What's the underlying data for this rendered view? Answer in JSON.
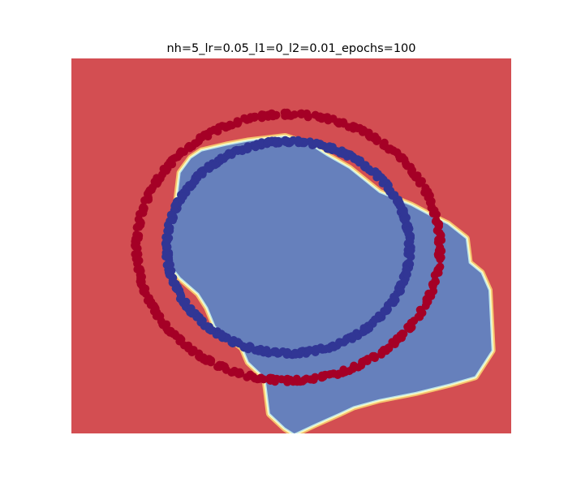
{
  "chart_data": {
    "type": "scatter",
    "title": "nh=5_lr=0.05_l1=0_l2=0.01_epochs=100",
    "xlabel": "",
    "ylabel": "",
    "xlim": [
      -1.45,
      1.45
    ],
    "ylim": [
      -1.31,
      1.31
    ],
    "axes_visible": false,
    "grid": false,
    "background": {
      "kind": "decision-region",
      "outside_color": "#d34e52",
      "inside_color": "#6680bc",
      "boundary_colors": [
        "#f5c36e",
        "#fdfdc2",
        "#bde4ea"
      ],
      "inside_region_polygon": [
        [
          -0.04,
          0.76
        ],
        [
          0.13,
          0.7
        ],
        [
          0.23,
          0.63
        ],
        [
          0.38,
          0.54
        ],
        [
          0.58,
          0.37
        ],
        [
          0.79,
          0.28
        ],
        [
          0.93,
          0.2
        ],
        [
          1.03,
          0.15
        ],
        [
          1.15,
          0.05
        ],
        [
          1.17,
          -0.12
        ],
        [
          1.25,
          -0.19
        ],
        [
          1.3,
          -0.31
        ],
        [
          1.32,
          -0.73
        ],
        [
          1.21,
          -0.91
        ],
        [
          1.05,
          -0.96
        ],
        [
          0.82,
          -1.02
        ],
        [
          0.58,
          -1.07
        ],
        [
          0.41,
          -1.12
        ],
        [
          0.31,
          -1.17
        ],
        [
          0.16,
          -1.24
        ],
        [
          0.02,
          -1.31
        ],
        [
          -0.04,
          -1.27
        ],
        [
          -0.14,
          -1.17
        ],
        [
          -0.17,
          -0.92
        ],
        [
          -0.28,
          -0.81
        ],
        [
          -0.32,
          -0.71
        ],
        [
          -0.5,
          -0.56
        ],
        [
          -0.55,
          -0.43
        ],
        [
          -0.61,
          -0.33
        ],
        [
          -0.73,
          -0.22
        ],
        [
          -0.79,
          -0.14
        ],
        [
          -0.81,
          0.01
        ],
        [
          -0.76,
          0.24
        ],
        [
          -0.73,
          0.51
        ],
        [
          -0.66,
          0.61
        ],
        [
          -0.59,
          0.66
        ],
        [
          -0.43,
          0.7
        ],
        [
          -0.28,
          0.73
        ]
      ]
    },
    "series": [
      {
        "color": "#a50026",
        "marker": "circle",
        "count": 400,
        "center": [
          -0.02,
          -0.01
        ],
        "rx": 1.0,
        "ry": 0.93
      },
      {
        "color": "#313695",
        "marker": "circle",
        "count": 400,
        "center": [
          -0.02,
          -0.01
        ],
        "rx": 0.8,
        "ry": 0.74
      }
    ]
  }
}
